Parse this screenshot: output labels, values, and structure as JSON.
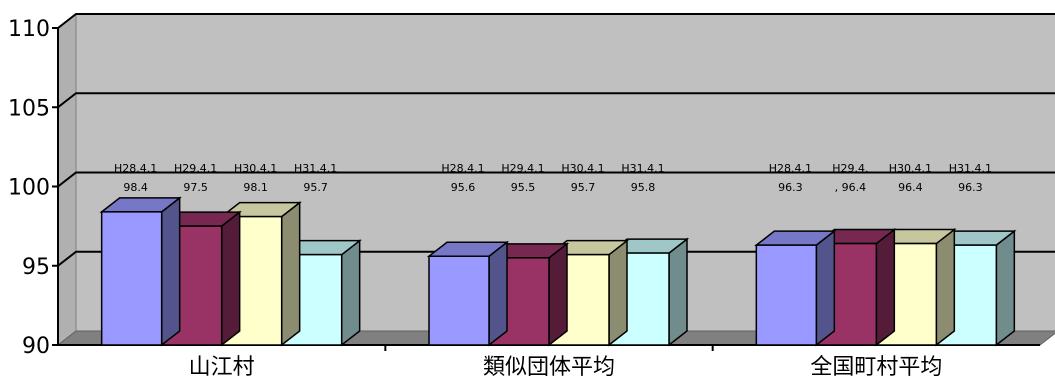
{
  "chart_data": {
    "type": "bar",
    "ylim": [
      90,
      110
    ],
    "yticks": [
      90,
      95,
      100,
      105,
      110
    ],
    "categories": [
      "山江村",
      "類似団体平均",
      "全国町村平均"
    ],
    "series": [
      {
        "name": "H28.4.1",
        "color": "#9999ff",
        "values": [
          98.4,
          95.6,
          96.3
        ]
      },
      {
        "name": "H29.4.1",
        "color": "#993366",
        "values": [
          97.5,
          95.5,
          96.4
        ]
      },
      {
        "name": "H30.4.1",
        "color": "#ffffcc",
        "values": [
          98.1,
          95.7,
          96.4
        ]
      },
      {
        "name": "H31.4.1",
        "color": "#ccffff",
        "values": [
          95.7,
          95.8,
          96.3
        ]
      }
    ],
    "data_labels": [
      [
        {
          "top": "H28.4.1",
          "bottom": "98.4"
        },
        {
          "top": "H29.4.1",
          "bottom": "97.5"
        },
        {
          "top": "H30.4.1",
          "bottom": "98.1"
        },
        {
          "top": "H31.4.1",
          "bottom": "95.7"
        }
      ],
      [
        {
          "top": "H28.4.1",
          "bottom": "95.6"
        },
        {
          "top": "H29.4.1",
          "bottom": "95.5"
        },
        {
          "top": "H30.4.1",
          "bottom": "95.7"
        },
        {
          "top": "H31.4.1",
          "bottom": "95.8"
        }
      ],
      [
        {
          "top": "H28.4.1",
          "bottom": "96.3"
        },
        {
          "top": "H29.4.",
          "bottom": ", 96.4"
        },
        {
          "top": "H30.4.1",
          "bottom": "96.4"
        },
        {
          "top": "H31.4.1",
          "bottom": "96.3"
        }
      ]
    ],
    "grid": true,
    "colors": {
      "wall": "#c0c0c0",
      "floor": "#808080",
      "gridline": "#000000",
      "outline": "#000000"
    }
  }
}
